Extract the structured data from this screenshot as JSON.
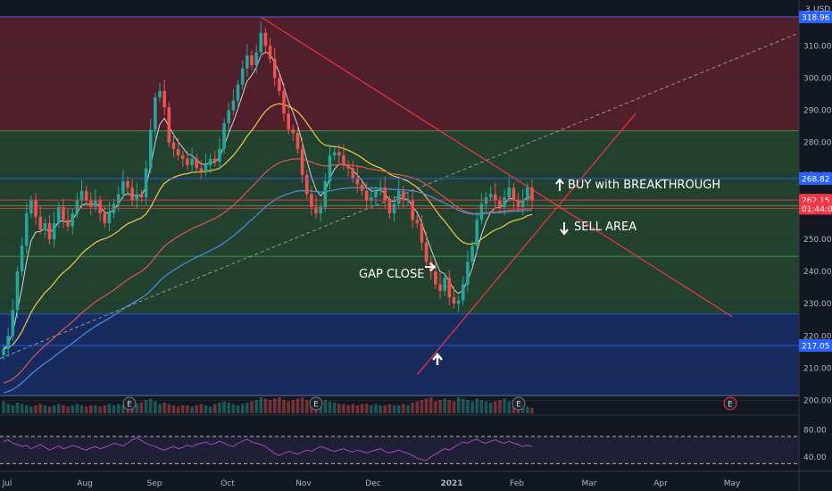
{
  "chart_data": {
    "type": "candlestick",
    "currency": "USD",
    "currency_prefix": "3",
    "x_ticks": [
      "Jul",
      "Aug",
      "Sep",
      "Oct",
      "Nov",
      "Dec",
      "2021",
      "Feb",
      "Mar",
      "Apr",
      "May"
    ],
    "y_ticks": [
      200,
      210,
      220,
      230,
      240,
      250,
      260,
      270,
      280,
      290,
      300,
      310
    ],
    "y_tick_labels": [
      "200.00",
      "210.00",
      "220.00",
      "230.00",
      "240.00",
      "250.00",
      "260.00",
      "270.00",
      "280.00",
      "290.00",
      "300.00",
      "310.00"
    ],
    "ylim": [
      196,
      322
    ],
    "price_labels": [
      {
        "text": "318.96",
        "value": 318.96,
        "color": "#2962ff"
      },
      {
        "text": "268.82",
        "value": 268.82,
        "color": "#2962ff"
      },
      {
        "text": "262.15",
        "value": 262.15,
        "color": "#f23645"
      },
      {
        "text": "01:44:07",
        "value": 259.6,
        "color": "#f23645"
      },
      {
        "text": "217.05",
        "value": 217.05,
        "color": "#2962ff"
      }
    ],
    "zones": [
      {
        "from": 283.6,
        "to": 319,
        "color": "#f23645"
      },
      {
        "from": 260.4,
        "to": 283.6,
        "color": "#4caf50"
      },
      {
        "from": 244.7,
        "to": 260.4,
        "color": "#4caf50"
      },
      {
        "from": 226.8,
        "to": 244.7,
        "color": "#4caf50"
      },
      {
        "from": 201.5,
        "to": 226.8,
        "color": "#2962ff"
      }
    ],
    "closes": [
      216,
      220,
      228,
      240,
      248,
      258,
      262,
      257,
      253,
      255,
      250,
      255,
      260,
      256,
      254,
      258,
      262,
      265,
      262,
      260,
      262,
      258,
      255,
      258,
      261,
      264,
      268,
      266,
      262,
      264,
      263,
      272,
      284,
      294,
      296,
      291,
      280,
      278,
      276,
      275,
      273,
      275,
      272,
      271,
      273,
      275,
      274,
      278,
      286,
      290,
      293,
      298,
      303,
      307,
      304,
      308,
      314,
      310,
      306,
      300,
      296,
      289,
      284,
      283,
      278,
      270,
      264,
      260,
      258,
      260,
      268,
      276,
      277,
      276,
      273,
      272,
      269,
      267,
      265,
      262,
      263,
      265,
      266,
      262,
      258,
      261,
      265,
      262,
      262,
      256,
      255,
      249,
      243,
      240,
      236,
      234,
      238,
      232,
      230,
      231,
      236,
      243,
      248,
      256,
      261,
      263,
      264,
      262,
      260,
      263,
      266,
      262,
      260,
      262,
      266,
      262
    ],
    "volume": [
      0.45,
      0.35,
      0.3,
      0.4,
      0.35,
      0.3,
      0.25,
      0.3,
      0.35,
      0.3,
      0.25,
      0.3,
      0.35,
      0.3,
      0.25,
      0.3,
      0.35,
      0.3,
      0.25,
      0.3,
      0.3,
      0.25,
      0.3,
      0.35,
      0.3,
      0.35,
      0.3,
      0.25,
      0.3,
      0.35,
      0.4,
      0.5,
      0.55,
      0.45,
      0.35,
      0.4,
      0.35,
      0.3,
      0.25,
      0.3,
      0.3,
      0.25,
      0.3,
      0.35,
      0.3,
      0.25,
      0.35,
      0.4,
      0.45,
      0.4,
      0.35,
      0.3,
      0.35,
      0.4,
      0.45,
      0.5,
      0.6,
      0.55,
      0.5,
      0.55,
      0.6,
      0.5,
      0.45,
      0.5,
      0.55,
      0.6,
      0.5,
      0.45,
      0.4,
      0.45,
      0.5,
      0.45,
      0.4,
      0.35,
      0.35,
      0.3,
      0.35,
      0.3,
      0.35,
      0.35,
      0.3,
      0.35,
      0.3,
      0.3,
      0.35,
      0.3,
      0.3,
      0.35,
      0.3,
      0.4,
      0.45,
      0.5,
      0.55,
      0.6,
      0.45,
      0.5,
      0.55,
      0.5,
      0.45,
      0.6,
      0.55,
      0.5,
      0.45,
      0.55,
      0.5,
      0.45,
      0.4,
      0.45,
      0.5,
      0.55,
      0.45,
      0.4,
      0.35,
      0.3,
      0.25,
      0.2
    ],
    "rsi": [
      62,
      65,
      60,
      58,
      55,
      57,
      52,
      55,
      58,
      54,
      50,
      53,
      56,
      52,
      54,
      57,
      55,
      52,
      50,
      53,
      55,
      52,
      54,
      57,
      60,
      58,
      56,
      60,
      65,
      68,
      64,
      60,
      57,
      55,
      52,
      50,
      53,
      55,
      52,
      54,
      57,
      55,
      58,
      60,
      62,
      58,
      60,
      63,
      60,
      57,
      55,
      60,
      63,
      66,
      62,
      60,
      58,
      55,
      50,
      45,
      42,
      45,
      48,
      46,
      44,
      47,
      50,
      48,
      52,
      55,
      53,
      50,
      48,
      50,
      52,
      49,
      47,
      50,
      48,
      46,
      48,
      50,
      52,
      48,
      46,
      48,
      50,
      47,
      45,
      42,
      38,
      36,
      35,
      40,
      44,
      48,
      52,
      50,
      54,
      58,
      62,
      60,
      64,
      66,
      62,
      60,
      63,
      65,
      62,
      60,
      63,
      60,
      58,
      55,
      57,
      55
    ],
    "rsi_ticks": [
      80,
      40
    ],
    "rsi_tick_labels": [
      "80.00",
      "40.00"
    ],
    "rsi_range": [
      20,
      100
    ],
    "rsi_bands": [
      70,
      30
    ],
    "events": [
      "E",
      "E",
      "E",
      "E"
    ],
    "annotations": [
      "BUY with BREAKTHROUGH",
      "SELL AREA",
      "GAP CLOSE"
    ]
  }
}
